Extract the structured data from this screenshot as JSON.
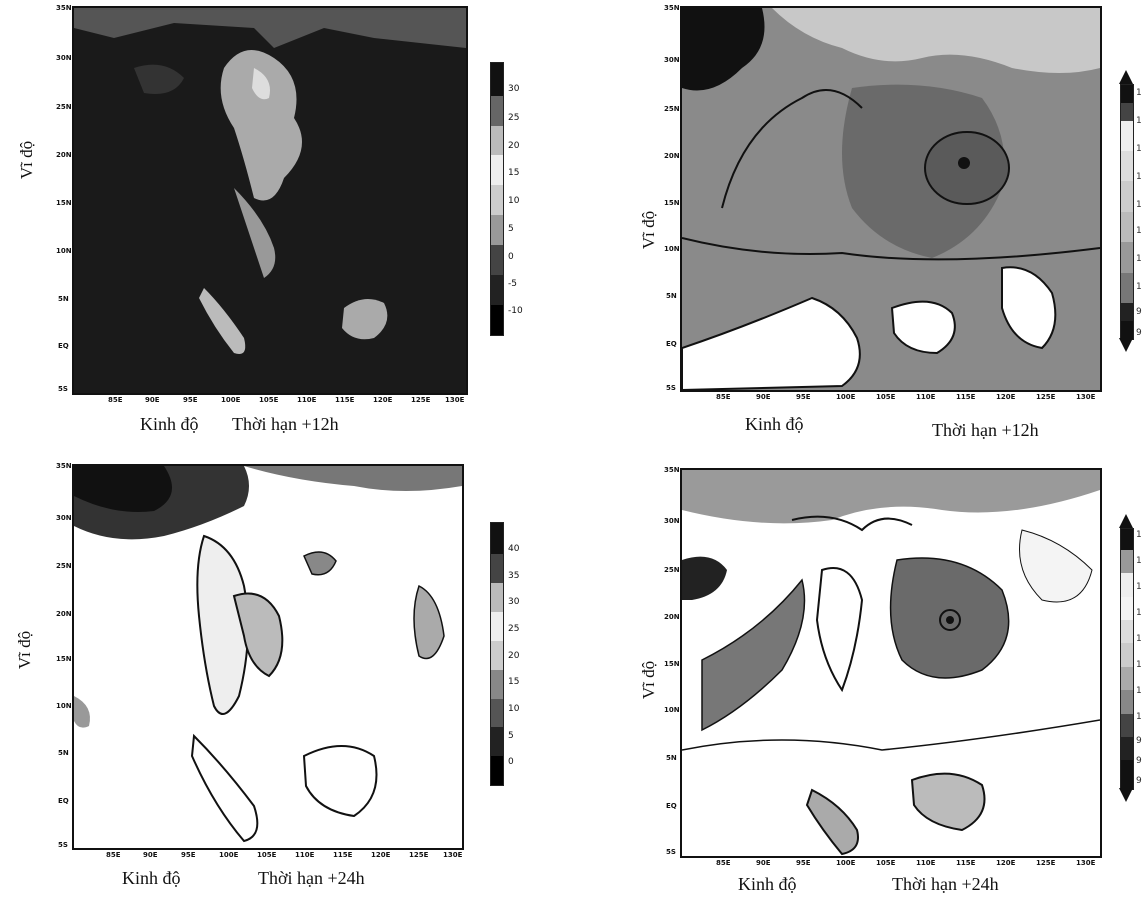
{
  "lat_ticks": [
    "35N",
    "30N",
    "25N",
    "20N",
    "15N",
    "10N",
    "5N",
    "EQ",
    "5S"
  ],
  "lon_ticks": [
    "85E",
    "90E",
    "95E",
    "100E",
    "105E",
    "110E",
    "115E",
    "120E",
    "125E",
    "130E"
  ],
  "panels": [
    {
      "id": "p1",
      "ylabel": "Vĩ độ",
      "xlabel": "Kinh độ",
      "title": "Thời hạn  +12h",
      "colorbar": {
        "labels": [
          "30",
          "25",
          "20",
          "15",
          "10",
          "5",
          "0",
          "-5",
          "-10"
        ],
        "has_arrows": false
      },
      "style": "dark"
    },
    {
      "id": "p2",
      "ylabel": "Vĩ độ",
      "xlabel": "Kinh độ",
      "title": "Thời hạn +12h",
      "colorbar": {
        "labels": [
          "1",
          "1",
          "1",
          "1",
          "1",
          "1",
          "1",
          "1",
          "9",
          "9"
        ],
        "has_arrows": true
      },
      "style": "pressure"
    },
    {
      "id": "p3",
      "ylabel": "Vĩ độ",
      "xlabel": "Kinh độ",
      "title": "Thời hạn +24h",
      "colorbar": {
        "labels": [
          "40",
          "35",
          "30",
          "25",
          "20",
          "15",
          "10",
          "5",
          "0"
        ],
        "has_arrows": false
      },
      "style": "light"
    },
    {
      "id": "p4",
      "ylabel": "Vĩ độ",
      "xlabel": "Kinh độ",
      "title": "Thời hạn +24h",
      "colorbar": {
        "labels": [
          "1",
          "1",
          "1",
          "1",
          "1",
          "1",
          "1",
          "1",
          "9",
          "9",
          "9"
        ],
        "has_arrows": true
      },
      "style": "pressure"
    }
  ]
}
